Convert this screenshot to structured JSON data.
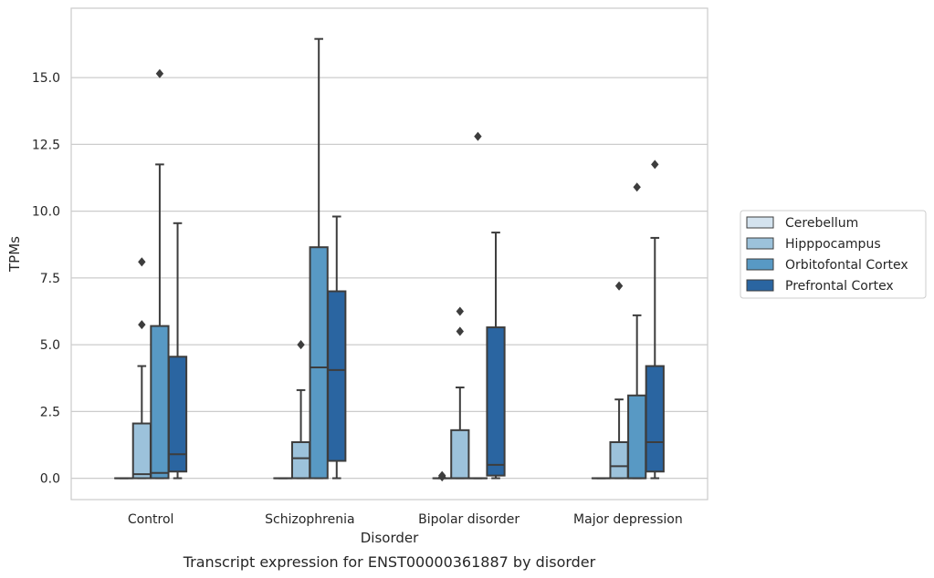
{
  "chart_data": {
    "type": "box",
    "xlabel": "Disorder",
    "ylabel": "TPMs",
    "caption": "Transcript expression for ENST00000361887 by disorder",
    "ylim": [
      -0.8,
      17.6
    ],
    "yticks": [
      0.0,
      2.5,
      5.0,
      7.5,
      10.0,
      12.5,
      15.0
    ],
    "ytick_labels": [
      "0.0",
      "2.5",
      "5.0",
      "7.5",
      "10.0",
      "12.5",
      "15.0"
    ],
    "grid": "horizontal",
    "legend_position": "outside-right",
    "categories": [
      "Control",
      "Schizophrenia",
      "Bipolar disorder",
      "Major depression"
    ],
    "series": [
      {
        "name": "Cerebellum",
        "color": "#d4e3ef",
        "boxes": [
          {
            "min": 0.0,
            "q1": 0.0,
            "median": 0.0,
            "q3": 0.0,
            "max": 0.0,
            "outliers": []
          },
          {
            "min": 0.0,
            "q1": 0.0,
            "median": 0.0,
            "q3": 0.0,
            "max": 0.0,
            "outliers": []
          },
          {
            "min": 0.0,
            "q1": 0.0,
            "median": 0.0,
            "q3": 0.0,
            "max": 0.0,
            "outliers": [
              0.05,
              0.1
            ]
          },
          {
            "min": 0.0,
            "q1": 0.0,
            "median": 0.0,
            "q3": 0.0,
            "max": 0.0,
            "outliers": []
          }
        ]
      },
      {
        "name": "Hipppocampus",
        "color": "#9cc2db",
        "boxes": [
          {
            "min": 0.0,
            "q1": 0.0,
            "median": 0.15,
            "q3": 2.05,
            "max": 4.2,
            "outliers": [
              5.75,
              8.1
            ]
          },
          {
            "min": 0.0,
            "q1": 0.0,
            "median": 0.75,
            "q3": 1.35,
            "max": 3.3,
            "outliers": [
              5.0
            ]
          },
          {
            "min": 0.0,
            "q1": 0.0,
            "median": 0.0,
            "q3": 1.8,
            "max": 3.4,
            "outliers": [
              5.5,
              6.25
            ]
          },
          {
            "min": 0.0,
            "q1": 0.0,
            "median": 0.45,
            "q3": 1.35,
            "max": 2.95,
            "outliers": [
              7.2
            ]
          }
        ]
      },
      {
        "name": "Orbitofontal Cortex",
        "color": "#5899c4",
        "boxes": [
          {
            "min": 0.0,
            "q1": 0.0,
            "median": 0.2,
            "q3": 5.7,
            "max": 11.75,
            "outliers": [
              15.15
            ]
          },
          {
            "min": 0.0,
            "q1": 0.0,
            "median": 4.15,
            "q3": 8.65,
            "max": 16.45,
            "outliers": []
          },
          {
            "min": 0.0,
            "q1": 0.0,
            "median": 0.0,
            "q3": 0.0,
            "max": 0.0,
            "outliers": [
              12.8
            ]
          },
          {
            "min": 0.0,
            "q1": 0.0,
            "median": 0.0,
            "q3": 3.1,
            "max": 6.1,
            "outliers": [
              10.9
            ]
          }
        ]
      },
      {
        "name": "Prefrontal Cortex",
        "color": "#2a65a1",
        "boxes": [
          {
            "min": 0.0,
            "q1": 0.25,
            "median": 0.9,
            "q3": 4.55,
            "max": 9.55,
            "outliers": []
          },
          {
            "min": 0.0,
            "q1": 0.65,
            "median": 4.05,
            "q3": 7.0,
            "max": 9.8,
            "outliers": []
          },
          {
            "min": 0.0,
            "q1": 0.1,
            "median": 0.5,
            "q3": 5.65,
            "max": 9.2,
            "outliers": []
          },
          {
            "min": 0.0,
            "q1": 0.25,
            "median": 1.35,
            "q3": 4.2,
            "max": 9.0,
            "outliers": [
              11.75
            ]
          }
        ]
      }
    ]
  }
}
